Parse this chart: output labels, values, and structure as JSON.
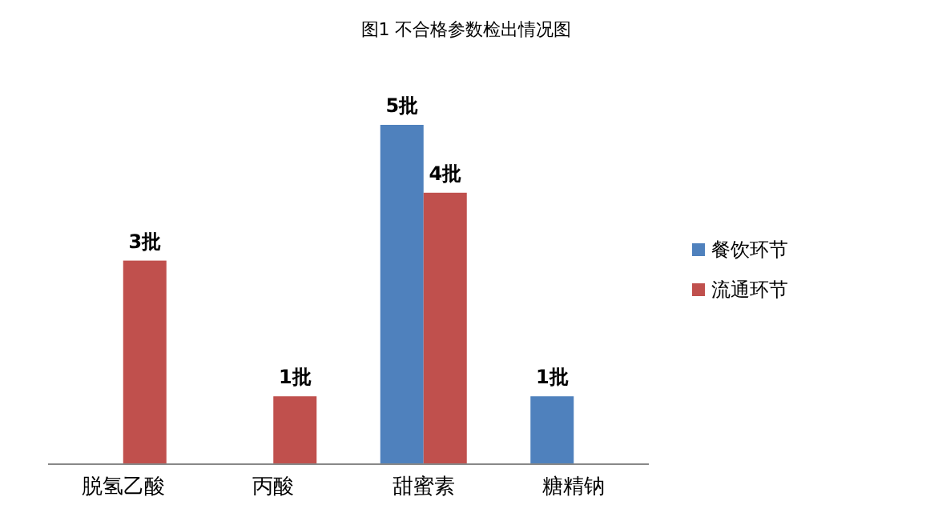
{
  "chart_data": {
    "type": "bar",
    "title": "图1 不合格参数检出情况图",
    "categories": [
      "脱氢乙酸",
      "丙酸",
      "甜蜜素",
      "糖精钠"
    ],
    "legend": "right",
    "series": [
      {
        "name": "餐饮环节",
        "color": "#4f81bd",
        "values": [
          null,
          null,
          5,
          1
        ],
        "value_labels": [
          null,
          null,
          "5批",
          "1批"
        ]
      },
      {
        "name": "流通环节",
        "color": "#c0504d",
        "values": [
          3,
          1,
          4,
          null
        ],
        "value_labels": [
          "3批",
          "1批",
          "4批",
          null
        ]
      }
    ]
  }
}
